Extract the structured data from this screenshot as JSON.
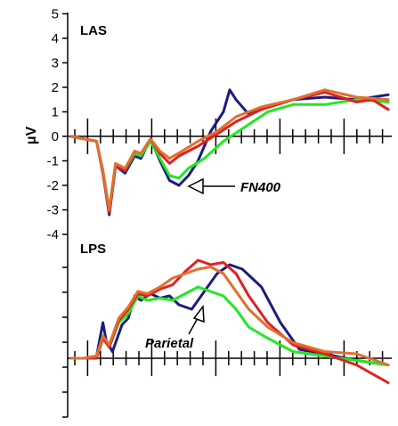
{
  "chart_data": [
    {
      "type": "line",
      "panel": "LAS",
      "ylabel": "μV",
      "ylim": [
        -4,
        5
      ],
      "yticks": [
        "5",
        "4",
        "3",
        "2",
        "1",
        "0",
        "-1",
        "-2",
        "-3",
        "-4"
      ],
      "annotation": "FN400",
      "series": [
        {
          "color": "#1c1c80",
          "values": [
            [
              0,
              0
            ],
            [
              0.04,
              -0.1
            ],
            [
              0.08,
              -0.2
            ],
            [
              0.1,
              -1.5
            ],
            [
              0.12,
              -3.2
            ],
            [
              0.14,
              -1.2
            ],
            [
              0.17,
              -1.5
            ],
            [
              0.2,
              -0.8
            ],
            [
              0.22,
              -0.9
            ],
            [
              0.25,
              -0.1
            ],
            [
              0.28,
              -1.0
            ],
            [
              0.31,
              -1.8
            ],
            [
              0.34,
              -2.0
            ],
            [
              0.37,
              -1.6
            ],
            [
              0.4,
              -1.0
            ],
            [
              0.44,
              0.2
            ],
            [
              0.48,
              1.0
            ],
            [
              0.5,
              1.9
            ],
            [
              0.52,
              1.5
            ],
            [
              0.56,
              0.9
            ],
            [
              0.62,
              1.2
            ],
            [
              0.7,
              1.5
            ],
            [
              0.8,
              1.6
            ],
            [
              0.9,
              1.5
            ],
            [
              1.0,
              1.7
            ]
          ]
        },
        {
          "color": "#22e822",
          "values": [
            [
              0,
              0
            ],
            [
              0.04,
              -0.1
            ],
            [
              0.08,
              -0.2
            ],
            [
              0.1,
              -1.4
            ],
            [
              0.12,
              -3.0
            ],
            [
              0.14,
              -1.1
            ],
            [
              0.17,
              -1.4
            ],
            [
              0.2,
              -0.7
            ],
            [
              0.22,
              -0.8
            ],
            [
              0.25,
              -0.2
            ],
            [
              0.28,
              -0.9
            ],
            [
              0.31,
              -1.6
            ],
            [
              0.34,
              -1.7
            ],
            [
              0.37,
              -1.3
            ],
            [
              0.42,
              -0.9
            ],
            [
              0.48,
              -0.2
            ],
            [
              0.55,
              0.4
            ],
            [
              0.62,
              1.0
            ],
            [
              0.7,
              1.3
            ],
            [
              0.8,
              1.3
            ],
            [
              0.9,
              1.5
            ],
            [
              1.0,
              1.4
            ]
          ]
        },
        {
          "color": "#e02020",
          "values": [
            [
              0,
              0
            ],
            [
              0.04,
              -0.1
            ],
            [
              0.08,
              -0.2
            ],
            [
              0.1,
              -1.5
            ],
            [
              0.12,
              -3.1
            ],
            [
              0.14,
              -1.2
            ],
            [
              0.17,
              -1.4
            ],
            [
              0.2,
              -0.6
            ],
            [
              0.22,
              -0.7
            ],
            [
              0.25,
              -0.1
            ],
            [
              0.28,
              -0.7
            ],
            [
              0.31,
              -1.1
            ],
            [
              0.34,
              -0.8
            ],
            [
              0.4,
              -0.4
            ],
            [
              0.46,
              0.1
            ],
            [
              0.52,
              0.6
            ],
            [
              0.6,
              1.1
            ],
            [
              0.7,
              1.5
            ],
            [
              0.8,
              1.8
            ],
            [
              0.9,
              1.4
            ],
            [
              0.95,
              1.5
            ],
            [
              1.0,
              1.1
            ]
          ]
        },
        {
          "color": "#e07030",
          "values": [
            [
              0,
              0
            ],
            [
              0.04,
              -0.1
            ],
            [
              0.08,
              -0.2
            ],
            [
              0.1,
              -1.4
            ],
            [
              0.12,
              -3.0
            ],
            [
              0.14,
              -1.1
            ],
            [
              0.17,
              -1.3
            ],
            [
              0.2,
              -0.6
            ],
            [
              0.22,
              -0.7
            ],
            [
              0.25,
              -0.1
            ],
            [
              0.28,
              -0.6
            ],
            [
              0.31,
              -0.9
            ],
            [
              0.35,
              -0.6
            ],
            [
              0.4,
              -0.2
            ],
            [
              0.46,
              0.2
            ],
            [
              0.52,
              0.8
            ],
            [
              0.6,
              1.2
            ],
            [
              0.7,
              1.5
            ],
            [
              0.8,
              1.9
            ],
            [
              0.9,
              1.6
            ],
            [
              1.0,
              1.5
            ]
          ]
        }
      ]
    },
    {
      "type": "line",
      "panel": "LPS",
      "annotation": "Parietal",
      "series": [
        {
          "color": "#1c1c80",
          "values": [
            [
              0,
              0
            ],
            [
              0.04,
              0.0
            ],
            [
              0.08,
              0.1
            ],
            [
              0.1,
              1.6
            ],
            [
              0.11,
              0.8
            ],
            [
              0.13,
              0.3
            ],
            [
              0.16,
              1.5
            ],
            [
              0.18,
              1.8
            ],
            [
              0.2,
              2.8
            ],
            [
              0.22,
              2.6
            ],
            [
              0.25,
              2.9
            ],
            [
              0.28,
              2.7
            ],
            [
              0.31,
              2.8
            ],
            [
              0.34,
              2.4
            ],
            [
              0.38,
              2.2
            ],
            [
              0.42,
              3.0
            ],
            [
              0.46,
              3.8
            ],
            [
              0.5,
              4.2
            ],
            [
              0.54,
              4.0
            ],
            [
              0.6,
              3.2
            ],
            [
              0.66,
              1.6
            ],
            [
              0.72,
              0.4
            ],
            [
              0.8,
              0.2
            ],
            [
              0.9,
              -0.1
            ],
            [
              1.0,
              -0.3
            ]
          ]
        },
        {
          "color": "#22e822",
          "values": [
            [
              0,
              0
            ],
            [
              0.04,
              0.0
            ],
            [
              0.08,
              0.1
            ],
            [
              0.1,
              1.0
            ],
            [
              0.12,
              0.5
            ],
            [
              0.15,
              1.6
            ],
            [
              0.18,
              2.0
            ],
            [
              0.21,
              2.8
            ],
            [
              0.24,
              2.6
            ],
            [
              0.28,
              2.7
            ],
            [
              0.32,
              2.6
            ],
            [
              0.36,
              2.9
            ],
            [
              0.4,
              3.2
            ],
            [
              0.44,
              3.0
            ],
            [
              0.48,
              2.8
            ],
            [
              0.52,
              2.2
            ],
            [
              0.56,
              1.4
            ],
            [
              0.62,
              0.9
            ],
            [
              0.7,
              0.3
            ],
            [
              0.8,
              0.1
            ],
            [
              0.9,
              -0.1
            ],
            [
              1.0,
              -0.3
            ]
          ]
        },
        {
          "color": "#e02020",
          "values": [
            [
              0,
              0
            ],
            [
              0.04,
              0.0
            ],
            [
              0.08,
              0.0
            ],
            [
              0.1,
              0.9
            ],
            [
              0.12,
              0.5
            ],
            [
              0.15,
              1.7
            ],
            [
              0.18,
              2.2
            ],
            [
              0.21,
              2.9
            ],
            [
              0.24,
              2.8
            ],
            [
              0.28,
              3.1
            ],
            [
              0.32,
              3.3
            ],
            [
              0.36,
              3.9
            ],
            [
              0.4,
              4.4
            ],
            [
              0.44,
              4.2
            ],
            [
              0.48,
              4.3
            ],
            [
              0.52,
              3.8
            ],
            [
              0.56,
              2.8
            ],
            [
              0.62,
              1.6
            ],
            [
              0.7,
              0.6
            ],
            [
              0.8,
              0.2
            ],
            [
              0.9,
              -0.3
            ],
            [
              1.0,
              -1.1
            ]
          ]
        },
        {
          "color": "#e07030",
          "values": [
            [
              0,
              0
            ],
            [
              0.04,
              0.0
            ],
            [
              0.08,
              0.1
            ],
            [
              0.1,
              1.0
            ],
            [
              0.12,
              0.6
            ],
            [
              0.15,
              1.8
            ],
            [
              0.18,
              2.3
            ],
            [
              0.21,
              3.0
            ],
            [
              0.24,
              2.9
            ],
            [
              0.28,
              3.2
            ],
            [
              0.32,
              3.6
            ],
            [
              0.36,
              3.8
            ],
            [
              0.4,
              4.0
            ],
            [
              0.44,
              4.1
            ],
            [
              0.48,
              3.8
            ],
            [
              0.52,
              3.0
            ],
            [
              0.56,
              2.2
            ],
            [
              0.62,
              1.4
            ],
            [
              0.7,
              0.7
            ],
            [
              0.8,
              0.3
            ],
            [
              0.9,
              0.2
            ],
            [
              1.0,
              -0.3
            ]
          ]
        }
      ]
    }
  ]
}
